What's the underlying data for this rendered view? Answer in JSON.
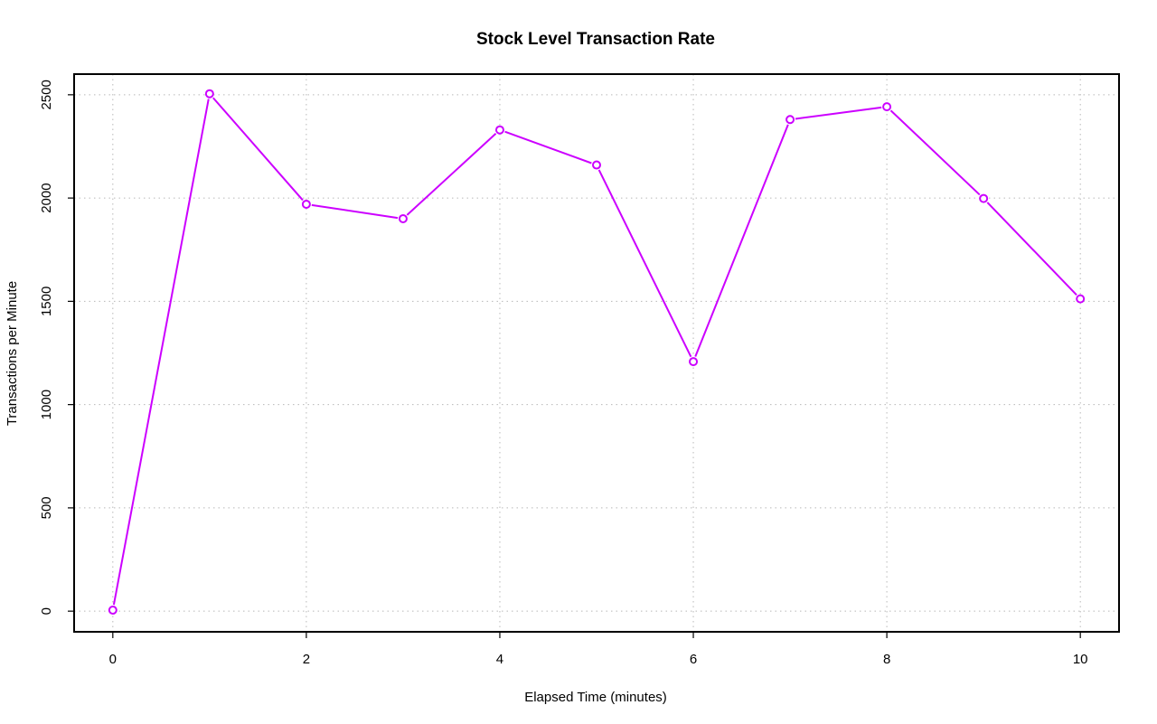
{
  "chart_data": {
    "type": "line",
    "title": "Stock Level Transaction Rate",
    "xlabel": "Elapsed Time (minutes)",
    "ylabel": "Transactions per Minute",
    "x": [
      0,
      1,
      2,
      3,
      4,
      5,
      6,
      7,
      8,
      9,
      10
    ],
    "series": [
      {
        "values": [
          5,
          2505,
          1970,
          1900,
          2330,
          2160,
          1208,
          2380,
          2442,
          1998,
          1512
        ],
        "color": "#cc00ff",
        "marker": "open-circle"
      }
    ],
    "xlim": [
      -0.4,
      10.4
    ],
    "ylim": [
      -100,
      2600
    ],
    "xticks": [
      0,
      2,
      4,
      6,
      8,
      10
    ],
    "yticks": [
      0,
      500,
      1000,
      1500,
      2000,
      2500
    ],
    "grid": true
  }
}
